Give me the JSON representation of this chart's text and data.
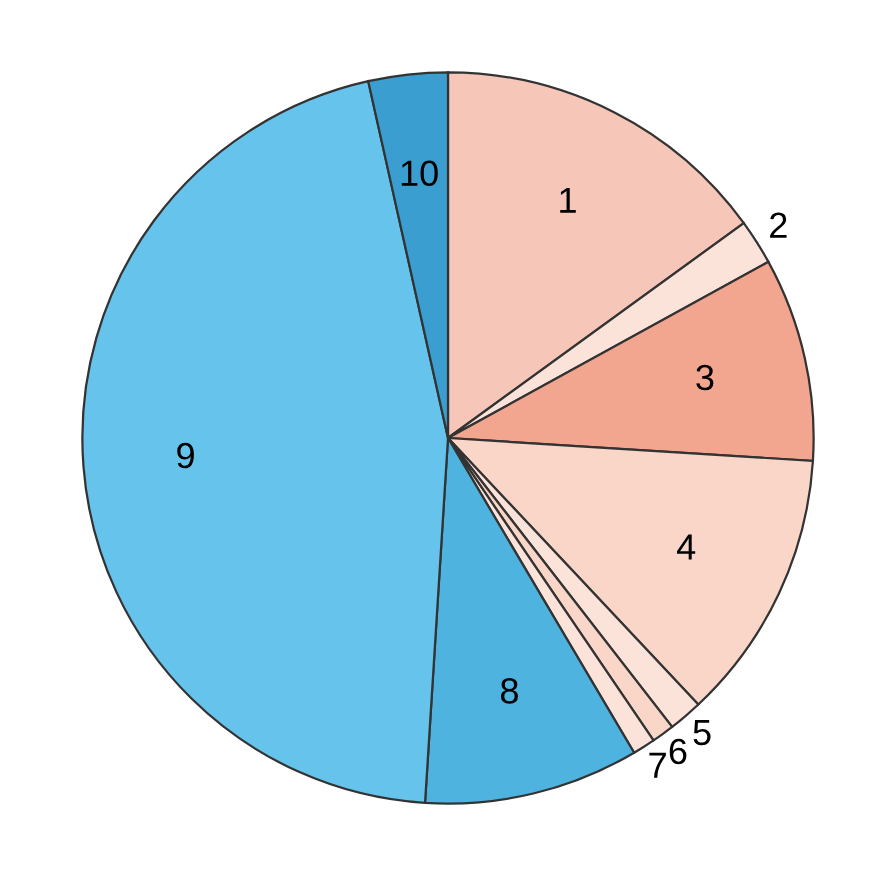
{
  "chart_data": {
    "type": "pie",
    "categories": [
      "1",
      "2",
      "3",
      "4",
      "5",
      "6",
      "7",
      "8",
      "9",
      "10"
    ],
    "values": [
      15,
      2,
      9,
      12,
      1.5,
      1,
      1,
      9.5,
      45.5,
      3.5
    ],
    "colors": [
      "#f6c6b8",
      "#fbe3da",
      "#f2a58f",
      "#f9d6c8",
      "#fbe3da",
      "#f9d6c8",
      "#fbe3da",
      "#4fb3df",
      "#66c3ec",
      "#3a9fd0"
    ]
  }
}
